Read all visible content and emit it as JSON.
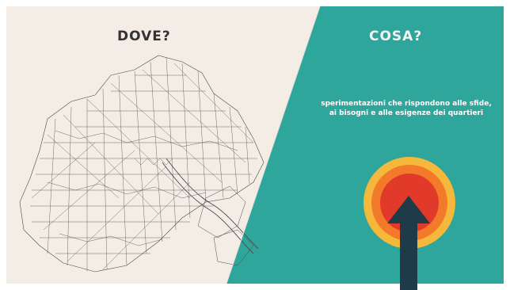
{
  "slide": {
    "left_title": "DOVE?",
    "right_title": "COSA?",
    "description": "sperimentazioni che rispondono alle sfide, ai bisogni e alle esigenze dei quartieri"
  },
  "colors": {
    "left_bg": "#f3ede6",
    "right_bg": "#2fa69b",
    "ring_outer": "#f6b83a",
    "ring_mid": "#f27a2a",
    "ring_inner": "#e23a2a",
    "arrow": "#1f3b49",
    "map_lines": "#4a4a4a"
  }
}
